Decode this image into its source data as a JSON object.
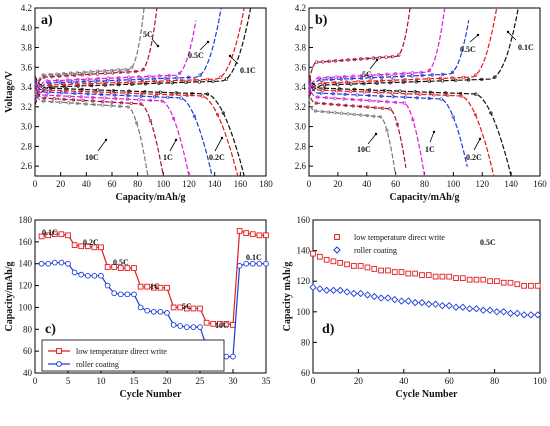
{
  "figure": {
    "colors": {
      "black": "#111111",
      "red": "#e31a1c",
      "blue": "#1f3bd6",
      "magenta": "#d61fd6",
      "darkred": "#a3123b",
      "grey": "#777777"
    }
  },
  "chart_data": [
    {
      "panel": "a)",
      "type": "line",
      "xlabel": "Capacity/mAh/g",
      "ylabel": "Voltage/V",
      "xlim": [
        0,
        180
      ],
      "ylim": [
        2.5,
        4.2
      ],
      "xticks": [
        "0",
        "20",
        "40",
        "60",
        "80",
        "100",
        "120",
        "140",
        "160",
        "180"
      ],
      "yticks": [
        "2.6",
        "2.8",
        "3.0",
        "3.2",
        "3.4",
        "3.6",
        "3.8",
        "4.0",
        "4.2"
      ],
      "legend": "none",
      "grid": false,
      "charge_series": [
        {
          "rate": "0.1C",
          "color": "#111111",
          "end_capacity": 168,
          "plateau": 3.43,
          "start": 3.22
        },
        {
          "rate": "0.2C",
          "color": "#e31a1c",
          "end_capacity": 163,
          "plateau": 3.45,
          "start": 3.25
        },
        {
          "rate": "0.5C",
          "color": "#1f3bd6",
          "end_capacity": 145,
          "plateau": 3.47,
          "start": 3.27
        },
        {
          "rate": "1C",
          "color": "#d61fd6",
          "end_capacity": 127,
          "plateau": 3.49,
          "start": 3.29
        },
        {
          "rate": "5C",
          "color": "#a3123b",
          "end_capacity": 95,
          "plateau": 3.53,
          "start": 3.31
        },
        {
          "rate": "10C",
          "color": "#777777",
          "end_capacity": 85,
          "plateau": 3.55,
          "start": 3.32
        }
      ],
      "discharge_series": [
        {
          "rate": "0.1C",
          "color": "#111111",
          "end_capacity": 163,
          "plateau": 3.39
        },
        {
          "rate": "0.2C",
          "color": "#e31a1c",
          "end_capacity": 158,
          "plateau": 3.37
        },
        {
          "rate": "0.5C",
          "color": "#1f3bd6",
          "end_capacity": 138,
          "plateau": 3.35
        },
        {
          "rate": "1C",
          "color": "#d61fd6",
          "end_capacity": 120,
          "plateau": 3.32
        },
        {
          "rate": "5C",
          "color": "#a3123b",
          "end_capacity": 100,
          "plateau": 3.29
        },
        {
          "rate": "10C",
          "color": "#777777",
          "end_capacity": 88,
          "plateau": 3.26
        }
      ],
      "annotations": [
        "5C",
        "0.5C",
        "0.1C",
        "10C",
        "1C",
        "0.2C"
      ]
    },
    {
      "panel": "b)",
      "type": "line",
      "xlabel": "Capacity/mAh/g",
      "ylabel": "",
      "xlim": [
        0,
        160
      ],
      "ylim": [
        2.5,
        4.2
      ],
      "xticks": [
        "0",
        "20",
        "40",
        "60",
        "80",
        "100",
        "120",
        "140",
        "160"
      ],
      "yticks": [
        "2.6",
        "2.8",
        "3.0",
        "3.2",
        "3.4",
        "3.6",
        "3.8",
        "4.0",
        "4.2"
      ],
      "legend": "none",
      "grid": false,
      "charge_series": [
        {
          "rate": "0.1C",
          "color": "#111111",
          "end_capacity": 145,
          "plateau": 3.45,
          "start": 3.3
        },
        {
          "rate": "0.2C",
          "color": "#e31a1c",
          "end_capacity": 130,
          "plateau": 3.47,
          "start": 3.32
        },
        {
          "rate": "0.5C",
          "color": "#1f3bd6",
          "end_capacity": 112,
          "plateau": 3.5,
          "start": 3.34
        },
        {
          "rate": "1C",
          "color": "#d61fd6",
          "end_capacity": 94,
          "plateau": 3.52,
          "start": 3.36
        },
        {
          "rate": "5C",
          "color": "#a3123b",
          "end_capacity": 70,
          "plateau": 3.68,
          "start": 3.4
        }
      ],
      "discharge_series": [
        {
          "rate": "0.1C",
          "color": "#111111",
          "end_capacity": 140,
          "plateau": 3.39
        },
        {
          "rate": "0.2C",
          "color": "#e31a1c",
          "end_capacity": 128,
          "plateau": 3.37
        },
        {
          "rate": "0.5C",
          "color": "#1f3bd6",
          "end_capacity": 111,
          "plateau": 3.34
        },
        {
          "rate": "1C",
          "color": "#d61fd6",
          "end_capacity": 80,
          "plateau": 3.3
        },
        {
          "rate": "5C",
          "color": "#a3123b",
          "end_capacity": 68,
          "plateau": 3.24
        },
        {
          "rate": "10C",
          "color": "#777777",
          "end_capacity": 60,
          "plateau": 3.16
        }
      ],
      "annotations": [
        "5C",
        "0.5C",
        "0.1C",
        "10C",
        "1C",
        "0.2C"
      ]
    },
    {
      "panel": "c)",
      "type": "line",
      "xlabel": "Cycle Number",
      "ylabel": "Capacity/mAh/g",
      "xlim": [
        0,
        35
      ],
      "ylim": [
        40,
        180
      ],
      "xticks": [
        "0",
        "5",
        "10",
        "15",
        "20",
        "25",
        "30",
        "35"
      ],
      "yticks": [
        "40",
        "60",
        "80",
        "100",
        "120",
        "140",
        "160",
        "180"
      ],
      "legend": "bottom-left",
      "grid": false,
      "x": [
        1,
        2,
        3,
        4,
        5,
        6,
        7,
        8,
        9,
        10,
        11,
        12,
        13,
        14,
        15,
        16,
        17,
        18,
        19,
        20,
        21,
        22,
        23,
        24,
        25,
        26,
        27,
        28,
        29,
        30,
        31,
        32,
        33,
        34,
        35
      ],
      "series": [
        {
          "name": "low temperature direct write",
          "color": "#e31a1c",
          "marker": "square",
          "values": [
            165,
            166,
            167,
            167,
            166,
            157,
            156,
            156,
            155,
            155,
            137,
            137,
            136,
            136,
            136,
            119,
            119,
            118,
            118,
            118,
            100,
            100,
            99,
            99,
            99,
            86,
            85,
            85,
            85,
            84,
            170,
            168,
            167,
            166,
            166
          ]
        },
        {
          "name": "roller coating",
          "color": "#1f3bd6",
          "marker": "circle",
          "values": [
            140,
            140,
            141,
            141,
            140,
            132,
            130,
            129,
            129,
            129,
            120,
            113,
            112,
            112,
            112,
            100,
            97,
            96,
            96,
            95,
            84,
            83,
            82,
            82,
            82,
            64,
            58,
            56,
            55,
            55,
            138,
            140,
            140,
            140,
            140
          ]
        }
      ],
      "annotations": [
        "0.1C",
        "0.2C",
        "0.5C",
        "1C",
        "5C",
        "10C",
        "0.1C"
      ]
    },
    {
      "panel": "d)",
      "type": "scatter",
      "xlabel": "Cycle Number",
      "ylabel": "Capacity mAh/g",
      "xlim": [
        0,
        100
      ],
      "ylim": [
        60,
        160
      ],
      "xticks": [
        "0",
        "20",
        "40",
        "60",
        "80",
        "100"
      ],
      "yticks": [
        "60",
        "80",
        "100",
        "120",
        "140",
        "160"
      ],
      "legend": "top-left",
      "grid": false,
      "x": [
        0,
        3,
        6,
        9,
        12,
        15,
        18,
        21,
        24,
        27,
        30,
        33,
        36,
        39,
        42,
        45,
        48,
        51,
        54,
        57,
        60,
        63,
        66,
        69,
        72,
        75,
        78,
        81,
        84,
        87,
        90,
        93,
        96,
        99
      ],
      "series": [
        {
          "name": "low temperature direct write",
          "color": "#e31a1c",
          "marker": "square",
          "values": [
            138,
            136,
            134,
            133,
            132,
            131,
            130,
            130,
            129,
            128,
            127,
            127,
            126,
            126,
            125,
            125,
            124,
            124,
            123,
            123,
            123,
            122,
            122,
            121,
            121,
            121,
            120,
            120,
            119,
            119,
            118,
            117,
            117,
            117
          ]
        },
        {
          "name": "roller coating",
          "color": "#1f3bd6",
          "marker": "diamond",
          "values": [
            116,
            115,
            114,
            114,
            114,
            113,
            112,
            112,
            111,
            110,
            109,
            109,
            108,
            107,
            107,
            106,
            106,
            105,
            105,
            104,
            104,
            103,
            103,
            102,
            102,
            101,
            101,
            100,
            100,
            99,
            99,
            98,
            98,
            98
          ]
        }
      ],
      "annotations": [
        "0.5C"
      ]
    }
  ]
}
